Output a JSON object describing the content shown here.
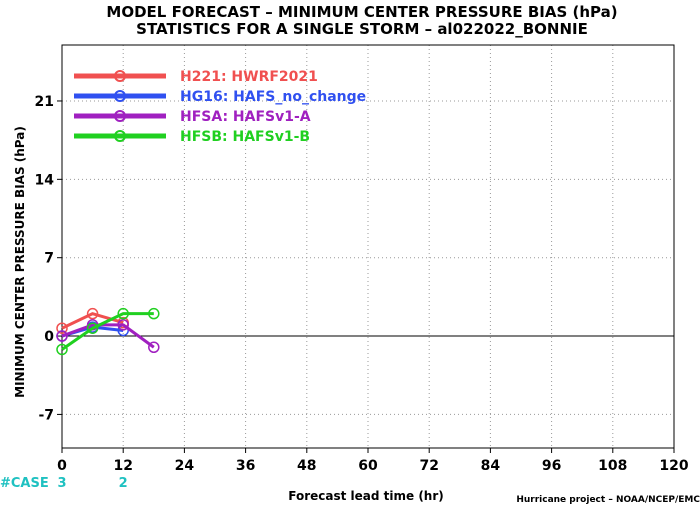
{
  "chart_data": {
    "type": "line",
    "title_line1": "MODEL FORECAST – MINIMUM CENTER PRESSURE BIAS (hPa)",
    "title_line2": "STATISTICS FOR A SINGLE STORM – al022022_BONNIE",
    "xlabel": "Forecast lead time (hr)",
    "ylabel": "MINIMUM CENTER PRESSURE BIAS (hPa)",
    "credit": "Hurricane project – NOAA/NCEP/EMC",
    "xlim": [
      0,
      120
    ],
    "ylim": [
      -10,
      26
    ],
    "x_ticks": [
      0,
      12,
      24,
      36,
      48,
      60,
      72,
      84,
      96,
      108,
      120
    ],
    "y_ticks": [
      -7,
      0,
      7,
      14,
      21
    ],
    "grid": true,
    "legend_position": "top-left",
    "case_label": "#CASE",
    "case_counts": [
      {
        "x": 0,
        "count": "3"
      },
      {
        "x": 12,
        "count": "2"
      }
    ],
    "series": [
      {
        "name": "H221: HWRF2021",
        "color": "#f05050",
        "x": [
          0,
          6,
          12
        ],
        "y": [
          0.7,
          2.0,
          1.2
        ]
      },
      {
        "name": "HG16: HAFS_no_change",
        "color": "#3050f0",
        "x": [
          0,
          6,
          12
        ],
        "y": [
          0.0,
          0.8,
          0.5
        ]
      },
      {
        "name": "HFSA: HAFSv1-A",
        "color": "#a020c0",
        "x": [
          0,
          6,
          12,
          18
        ],
        "y": [
          0.0,
          1.0,
          1.0,
          -1.0
        ]
      },
      {
        "name": "HFSB: HAFSv1-B",
        "color": "#20d020",
        "x": [
          0,
          6,
          12,
          18
        ],
        "y": [
          -1.2,
          0.7,
          2.0,
          2.0
        ]
      }
    ]
  }
}
